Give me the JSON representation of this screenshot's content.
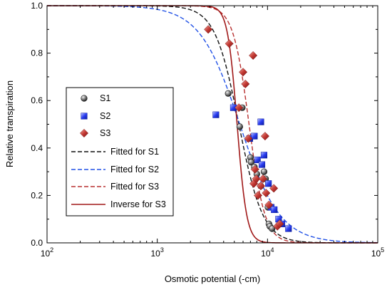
{
  "chart_data": {
    "type": "scatter",
    "title": "",
    "xlabel": "Osmotic potential (-cm)",
    "ylabel": "Relative transpiration",
    "x_scale": "log",
    "xlim": [
      100,
      100000
    ],
    "ylim": [
      0,
      1.0
    ],
    "x_ticks": [
      {
        "value": 100,
        "base": "10",
        "exp": "2"
      },
      {
        "value": 1000,
        "base": "10",
        "exp": "3"
      },
      {
        "value": 10000,
        "base": "10",
        "exp": "4"
      },
      {
        "value": 100000,
        "base": "10",
        "exp": "5"
      }
    ],
    "y_ticks": [
      {
        "value": 0.0,
        "label": "0.0"
      },
      {
        "value": 0.2,
        "label": "0.2"
      },
      {
        "value": 0.4,
        "label": "0.4"
      },
      {
        "value": 0.6,
        "label": "0.6"
      },
      {
        "value": 0.8,
        "label": "0.8"
      },
      {
        "value": 1.0,
        "label": "1.0"
      }
    ],
    "grid": false,
    "legend_position": "left-middle",
    "series": [
      {
        "name": "S1",
        "kind": "points",
        "marker": "sphere",
        "color": "#3c3c3c",
        "x": [
          4400,
          5600,
          5900,
          7000,
          7100,
          7600,
          8000,
          8700,
          9300,
          9600,
          10100,
          10300,
          10500,
          11000
        ],
        "y": [
          0.63,
          0.49,
          0.57,
          0.36,
          0.34,
          0.32,
          0.29,
          0.24,
          0.3,
          0.27,
          0.15,
          0.08,
          0.07,
          0.06
        ]
      },
      {
        "name": "S2",
        "kind": "points",
        "marker": "square",
        "color": "#2a3df0",
        "x": [
          3400,
          4900,
          6900,
          7600,
          8100,
          8700,
          8900,
          9300,
          10200,
          10800,
          11500,
          12600,
          13500,
          15500
        ],
        "y": [
          0.54,
          0.57,
          0.44,
          0.45,
          0.35,
          0.51,
          0.33,
          0.37,
          0.25,
          0.15,
          0.14,
          0.1,
          0.08,
          0.06
        ]
      },
      {
        "name": "S3",
        "kind": "points",
        "marker": "diamond",
        "color": "#c03030",
        "x": [
          2900,
          4500,
          5500,
          6000,
          6300,
          6700,
          7400,
          7500,
          7700,
          7900,
          8200,
          8700,
          9100,
          9500,
          9700,
          10300,
          11400,
          12300,
          12900
        ],
        "y": [
          0.9,
          0.84,
          0.57,
          0.72,
          0.67,
          0.44,
          0.79,
          0.25,
          0.31,
          0.27,
          0.2,
          0.24,
          0.27,
          0.45,
          0.21,
          0.16,
          0.23,
          0.07,
          0.08
        ]
      },
      {
        "name": "Fitted for S1",
        "kind": "curve",
        "style": "dashed",
        "color": "#111111",
        "x50": 5500,
        "p": 4.0
      },
      {
        "name": "Fitted for S2",
        "kind": "curve",
        "style": "dashed",
        "color": "#2050e6",
        "x50": 5600,
        "p": 2.4
      },
      {
        "name": "Fitted for S3",
        "kind": "curve",
        "style": "dashed",
        "color": "#b83030",
        "x50": 6800,
        "p": 6.0
      },
      {
        "name": "Inverse for S3",
        "kind": "curve",
        "style": "solid",
        "color": "#a01818",
        "x50": 5300,
        "p": 10.0
      }
    ]
  }
}
